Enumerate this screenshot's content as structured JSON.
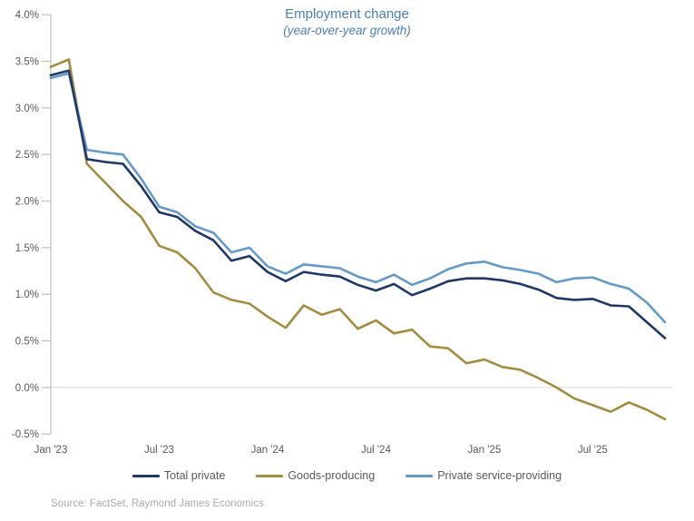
{
  "title": "Employment change",
  "subtitle": "(year-over-year growth)",
  "source": "Source: FactSet, Raymond James Economics",
  "colors": {
    "title_text": "#4A7EB5",
    "axis_text": "#595959",
    "axis_line": "#BFBFBF",
    "zero_line": "#D6D6D6",
    "source_text": "#ABABAB"
  },
  "legend": [
    {
      "label": "Total private",
      "color": "#1F3864"
    },
    {
      "label": "Goods-producing",
      "color": "#A28C42"
    },
    {
      "label": "Private service-providing",
      "color": "#6699C4"
    }
  ],
  "chart_data": {
    "type": "line",
    "title": "Employment change",
    "subtitle": "(year-over-year growth)",
    "ylabel": "",
    "xlabel": "",
    "ylim": [
      -0.5,
      4.0
    ],
    "grid": "zero-line-only",
    "legend_position": "bottom",
    "x": [
      "Jan '23",
      "Feb '23",
      "Mar '23",
      "Apr '23",
      "May '23",
      "Jun '23",
      "Jul '23",
      "Aug '23",
      "Sep '23",
      "Oct '23",
      "Nov '23",
      "Dec '23",
      "Jan '24",
      "Feb '24",
      "Mar '24",
      "Apr '24",
      "May '24",
      "Jun '24",
      "Jul '24",
      "Aug '24",
      "Sep '24",
      "Oct '24",
      "Nov '24",
      "Dec '24",
      "Jan '25",
      "Feb '25",
      "Mar '25",
      "Apr '25",
      "May '25",
      "Jun '25",
      "Jul '25",
      "Aug '25",
      "Sep '25",
      "Oct '25",
      "Nov '25"
    ],
    "x_ticks": [
      {
        "index": 0,
        "label": "Jan '23"
      },
      {
        "index": 6,
        "label": "Jul '23"
      },
      {
        "index": 12,
        "label": "Jan '24"
      },
      {
        "index": 18,
        "label": "Jul '24"
      },
      {
        "index": 24,
        "label": "Jan '25"
      },
      {
        "index": 30,
        "label": "Jul '25"
      }
    ],
    "y_ticks": [
      {
        "value": 4.0,
        "label": "4.0%"
      },
      {
        "value": 3.5,
        "label": "3.5%"
      },
      {
        "value": 3.0,
        "label": "3.0%"
      },
      {
        "value": 2.5,
        "label": "2.5%"
      },
      {
        "value": 2.0,
        "label": "2.0%"
      },
      {
        "value": 1.5,
        "label": "1.5%"
      },
      {
        "value": 1.0,
        "label": "1.0%"
      },
      {
        "value": 0.5,
        "label": "0.5%"
      },
      {
        "value": 0.0,
        "label": "0.0%"
      },
      {
        "value": -0.5,
        "label": "-0.5%"
      }
    ],
    "series": [
      {
        "name": "Total private",
        "color": "#1F3864",
        "values": [
          3.35,
          3.4,
          2.45,
          2.42,
          2.4,
          2.16,
          1.88,
          1.83,
          1.68,
          1.58,
          1.36,
          1.41,
          1.24,
          1.14,
          1.24,
          1.21,
          1.19,
          1.1,
          1.04,
          1.11,
          0.99,
          1.06,
          1.14,
          1.17,
          1.17,
          1.15,
          1.11,
          1.05,
          0.96,
          0.94,
          0.95,
          0.88,
          0.87,
          0.7,
          0.53
        ]
      },
      {
        "name": "Goods-producing",
        "color": "#A28C42",
        "values": [
          3.44,
          3.52,
          2.4,
          2.2,
          2.0,
          1.83,
          1.52,
          1.45,
          1.28,
          1.02,
          0.94,
          0.9,
          0.76,
          0.64,
          0.88,
          0.78,
          0.84,
          0.63,
          0.72,
          0.58,
          0.62,
          0.44,
          0.42,
          0.26,
          0.3,
          0.22,
          0.19,
          0.1,
          0.0,
          -0.12,
          -0.19,
          -0.26,
          -0.16,
          -0.24,
          -0.34
        ]
      },
      {
        "name": "Private service-providing",
        "color": "#6699C4",
        "values": [
          3.32,
          3.37,
          2.55,
          2.52,
          2.5,
          2.24,
          1.94,
          1.88,
          1.73,
          1.66,
          1.45,
          1.5,
          1.3,
          1.22,
          1.32,
          1.3,
          1.28,
          1.19,
          1.13,
          1.21,
          1.1,
          1.17,
          1.27,
          1.33,
          1.35,
          1.29,
          1.26,
          1.22,
          1.13,
          1.17,
          1.18,
          1.11,
          1.06,
          0.91,
          0.7
        ]
      }
    ]
  }
}
